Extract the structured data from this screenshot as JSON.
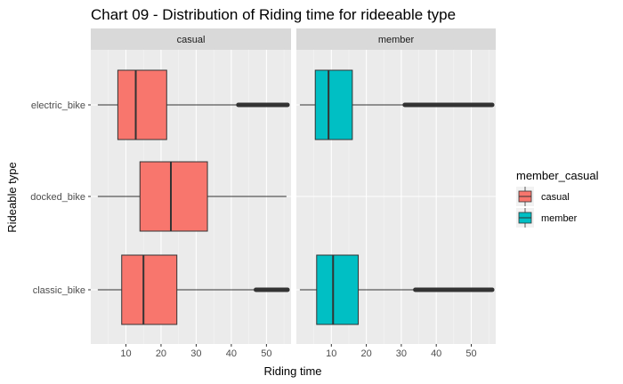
{
  "chart_data": {
    "type": "boxplot",
    "title": "Chart 09 - Distribution of Riding time for rideeable type",
    "xlabel": "Riding time",
    "ylabel": "Rideable type",
    "xlim": [
      0,
      57
    ],
    "x_ticks": [
      10,
      20,
      30,
      40,
      50
    ],
    "categories": [
      "electric_bike",
      "docked_bike",
      "classic_bike"
    ],
    "grid": true,
    "legend": {
      "title": "member_casual",
      "placement": "right",
      "entries": [
        {
          "label": "casual",
          "color": "#F8766D"
        },
        {
          "label": "member",
          "color": "#00BFC4"
        }
      ]
    },
    "panels": [
      {
        "name": "casual",
        "fill": "#F8766D",
        "boxes": [
          {
            "category": "electric_bike",
            "whisker_low": 2,
            "q1": 7.7,
            "median": 12.8,
            "q3": 21.6,
            "whisker_high": 42,
            "outliers_range": [
              42,
              56
            ]
          },
          {
            "category": "docked_bike",
            "whisker_low": 2,
            "q1": 14,
            "median": 22.8,
            "q3": 33.2,
            "whisker_high": 55.7,
            "outliers_range": null
          },
          {
            "category": "classic_bike",
            "whisker_low": 2,
            "q1": 8.8,
            "median": 15,
            "q3": 24.5,
            "whisker_high": 47,
            "outliers_range": [
              47,
              56
            ]
          }
        ]
      },
      {
        "name": "member",
        "fill": "#00BFC4",
        "boxes": [
          {
            "category": "electric_bike",
            "whisker_low": 1,
            "q1": 5.4,
            "median": 9.2,
            "q3": 16,
            "whisker_high": 31,
            "outliers_range": [
              31,
              56
            ]
          },
          {
            "category": "classic_bike",
            "whisker_low": 1,
            "q1": 5.8,
            "median": 10.5,
            "q3": 17.7,
            "whisker_high": 34,
            "outliers_range": [
              34,
              56
            ]
          }
        ]
      }
    ]
  }
}
